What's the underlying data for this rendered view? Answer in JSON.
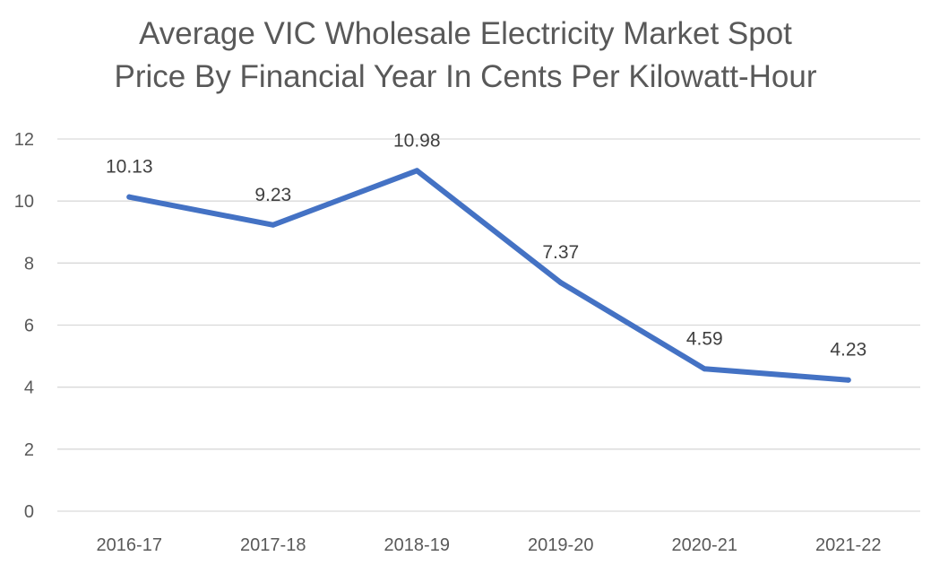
{
  "chart_data": {
    "type": "line",
    "title_line1": "Average VIC Wholesale Electricity Market Spot",
    "title_line2": "Price By Financial Year In Cents Per Kilowatt-Hour",
    "xlabel": "",
    "ylabel": "",
    "categories": [
      "2016-17",
      "2017-18",
      "2018-19",
      "2019-20",
      "2020-21",
      "2021-22"
    ],
    "series": [
      {
        "values": [
          10.13,
          9.23,
          10.98,
          7.37,
          4.59,
          4.23
        ],
        "data_labels": [
          "10.13",
          "9.23",
          "10.98",
          "7.37",
          "4.59",
          "4.23"
        ]
      }
    ],
    "ylim": [
      0,
      12
    ],
    "yticks": [
      0,
      2,
      4,
      6,
      8,
      10,
      12
    ],
    "ytick_labels": [
      "0",
      "2",
      "4",
      "6",
      "8",
      "10",
      "12"
    ],
    "grid": true,
    "legend": "none",
    "colors": {
      "line": "#4472C4",
      "grid": "#D9D9D9",
      "text": "#595959"
    }
  }
}
